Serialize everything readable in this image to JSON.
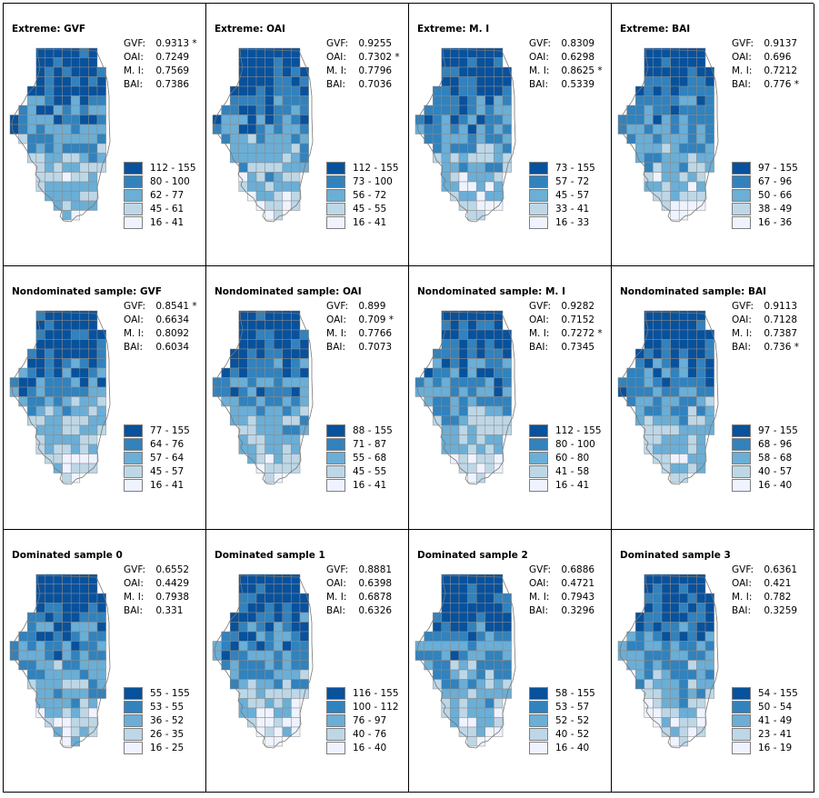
{
  "colors": [
    "#08519c",
    "#3182bd",
    "#6baed6",
    "#bdd7e7",
    "#eff3ff"
  ],
  "stat_labels": [
    "GVF:",
    "OAI:",
    "M. I:",
    "BAI:"
  ],
  "panels": [
    {
      "title": "Extreme: GVF",
      "stats": [
        "0.9313 *",
        "0.7249",
        "0.7569",
        "0.7386"
      ],
      "legend": [
        "112 - 155",
        "80 - 100",
        "62 - 77",
        "45 - 61",
        "16 - 41"
      ],
      "seed": 3
    },
    {
      "title": "Extreme: OAI",
      "stats": [
        "0.9255",
        "0.7302 *",
        "0.7796",
        "0.7036"
      ],
      "legend": [
        "112 - 155",
        "73 - 100",
        "56 - 72",
        "45 - 55",
        "16 - 41"
      ],
      "seed": 11
    },
    {
      "title": "Extreme: M. I",
      "stats": [
        "0.8309",
        "0.6298",
        "0.8625 *",
        "0.5339"
      ],
      "legend": [
        "73 - 155",
        "57 - 72",
        "45 - 57",
        "33 - 41",
        "16 - 33"
      ],
      "seed": 19
    },
    {
      "title": "Extreme: BAI",
      "stats": [
        "0.9137",
        "0.696",
        "0.7212",
        "0.776 *"
      ],
      "legend": [
        "97 - 155",
        "67 - 96",
        "50 - 66",
        "38 - 49",
        "16 - 36"
      ],
      "seed": 27
    },
    {
      "title": "Nondominated sample: GVF",
      "stats": [
        "0.8541 *",
        "0.6634",
        "0.8092",
        "0.6034"
      ],
      "legend": [
        "77 - 155",
        "64 - 76",
        "57 - 64",
        "45 - 57",
        "16 - 41"
      ],
      "seed": 35
    },
    {
      "title": "Nondominated sample: OAI",
      "stats": [
        "0.899",
        "0.709 *",
        "0.7766",
        "0.7073"
      ],
      "legend": [
        "88 - 155",
        "71 - 87",
        "55 - 68",
        "45 - 55",
        "16 - 41"
      ],
      "seed": 43
    },
    {
      "title": "Nondominated sample: M. I",
      "stats": [
        "0.9282",
        "0.7152",
        "0.7272 *",
        "0.7345"
      ],
      "legend": [
        "112 - 155",
        "80 - 100",
        "60 - 80",
        "41 - 58",
        "16 - 41"
      ],
      "seed": 51
    },
    {
      "title": "Nondominated sample: BAI",
      "stats": [
        "0.9113",
        "0.7128",
        "0.7387",
        "0.736 *"
      ],
      "legend": [
        "97 - 155",
        "68 - 96",
        "58 - 68",
        "40 - 57",
        "16 - 40"
      ],
      "seed": 59
    },
    {
      "title": "Dominated sample 0",
      "stats": [
        "0.6552",
        "0.4429",
        "0.7938",
        "0.331"
      ],
      "legend": [
        "55 - 155",
        "53 - 55",
        "36 - 52",
        "26 - 35",
        "16 - 25"
      ],
      "seed": 67
    },
    {
      "title": "Dominated sample 1",
      "stats": [
        "0.8881",
        "0.6398",
        "0.6878",
        "0.6326"
      ],
      "legend": [
        "116 - 155",
        "100 - 112",
        "76 - 97",
        "40 - 76",
        "16 - 40"
      ],
      "seed": 75
    },
    {
      "title": "Dominated sample 2",
      "stats": [
        "0.6886",
        "0.4721",
        "0.7943",
        "0.3296"
      ],
      "legend": [
        "58 - 155",
        "53 - 57",
        "52 - 52",
        "40 - 52",
        "16 - 40"
      ],
      "seed": 83
    },
    {
      "title": "Dominated sample 3",
      "stats": [
        "0.6361",
        "0.421",
        "0.782",
        "0.3259"
      ],
      "legend": [
        "54 - 155",
        "50 - 54",
        "41 - 49",
        "23 - 41",
        "16 - 19"
      ],
      "seed": 91
    }
  ]
}
